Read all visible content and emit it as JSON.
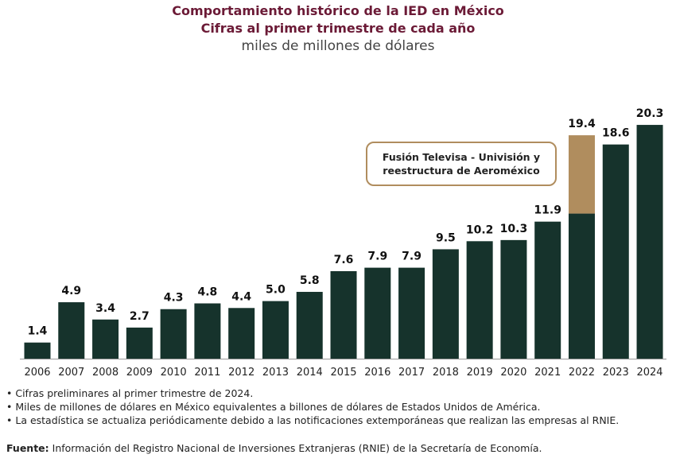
{
  "chart_data": {
    "type": "bar",
    "title": "Comportamiento histórico de la IED en México",
    "subtitle": "Cifras al primer trimestre de cada año",
    "units": "miles de millones de dólares",
    "categories": [
      "2006",
      "2007",
      "2008",
      "2009",
      "2010",
      "2011",
      "2012",
      "2013",
      "2014",
      "2015",
      "2016",
      "2017",
      "2018",
      "2019",
      "2020",
      "2021",
      "2022",
      "2023",
      "2024"
    ],
    "values": [
      1.4,
      4.9,
      3.4,
      2.7,
      4.3,
      4.8,
      4.4,
      5.0,
      5.8,
      7.6,
      7.9,
      7.9,
      9.5,
      10.2,
      10.3,
      11.9,
      19.4,
      18.6,
      20.3
    ],
    "labels": [
      "1.4",
      "4.9",
      "3.4",
      "2.7",
      "4.3",
      "4.8",
      "4.4",
      "5.0",
      "5.8",
      "7.6",
      "7.9",
      "7.9",
      "9.5",
      "10.2",
      "10.3",
      "11.9",
      "19.4",
      "18.6",
      "20.3"
    ],
    "stacked_highlight": {
      "category": "2022",
      "base": 12.6,
      "extra": 6.8
    },
    "annotation": {
      "line1": "Fusión Televisa - Univisión y",
      "line2": "reestructura de Aeroméxico"
    },
    "ylim": [
      0,
      21
    ],
    "grid": false,
    "colors": {
      "bar": "#16332c",
      "highlight": "#b08d5e",
      "title": "#6b1a36"
    }
  },
  "notes": [
    "Cifras preliminares al primer trimestre de 2024.",
    "Miles de millones de dólares en México equivalentes a billones de dólares de Estados Unidos de América.",
    "La estadística se actualiza periódicamente debido a las notificaciones extemporáneas que realizan las empresas al RNIE."
  ],
  "source": {
    "label": "Fuente:",
    "text": " Información del Registro Nacional de Inversiones Extranjeras (RNIE) de la Secretaría de Economía."
  }
}
